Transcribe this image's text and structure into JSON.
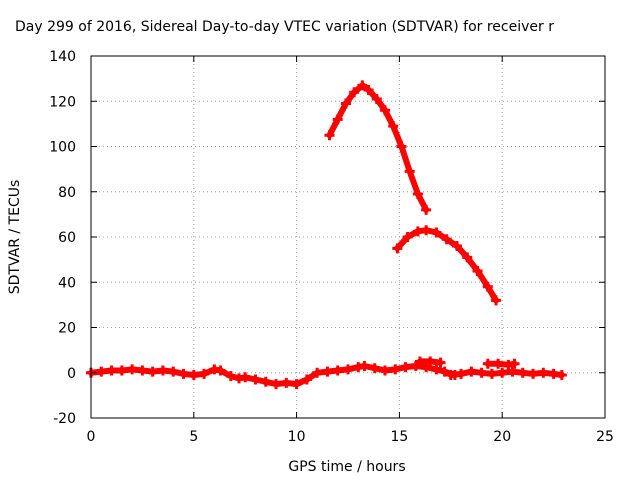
{
  "chart_data": {
    "type": "line",
    "title": "Day 299 of 2016, Sidereal Day-to-day VTEC variation (SDTVAR) for receiver r",
    "xlabel": "GPS time / hours",
    "ylabel": "SDTVAR / TECUs",
    "xlim": [
      0,
      25
    ],
    "ylim": [
      -20,
      140
    ],
    "xticks": [
      "0",
      "5",
      "10",
      "15",
      "20",
      "25"
    ],
    "yticks": [
      "-20",
      "0",
      "20",
      "40",
      "60",
      "80",
      "100",
      "120",
      "140"
    ],
    "grid": true,
    "color": "#ff0000",
    "series": [
      {
        "x": [
          0,
          0.5,
          1,
          1.5,
          2,
          2.5,
          3,
          3.5,
          4,
          4.5,
          5,
          5.5,
          6,
          6.3,
          6.8,
          7.2,
          7.5,
          8,
          8.5,
          9,
          9.5,
          10,
          10.5,
          11,
          11.5,
          12,
          12.5,
          13,
          13.3,
          13.8,
          14.3,
          14.8,
          15.3,
          15.8,
          16.3,
          16.8,
          17.2,
          17.7
        ],
        "y": [
          0,
          0.5,
          1,
          1,
          1.5,
          1,
          0.5,
          1,
          0.5,
          -0.5,
          -1,
          -0.5,
          1.5,
          1,
          -1.5,
          -2.5,
          -2,
          -3,
          -4,
          -5,
          -4.5,
          -5,
          -3,
          0,
          0.5,
          1,
          1.5,
          2.5,
          3,
          2,
          1,
          1.5,
          2.5,
          3,
          2.5,
          1.5,
          0.5,
          -1
        ]
      },
      {
        "x": [
          17.5,
          18,
          18.5,
          19,
          19.5,
          20,
          20.5,
          21,
          21.5,
          22,
          22.5,
          22.9
        ],
        "y": [
          -1,
          -0.5,
          0.5,
          0,
          -0.5,
          0,
          0.5,
          0,
          -0.5,
          0,
          -0.5,
          -1
        ]
      },
      {
        "x": [
          16,
          16.5,
          17
        ],
        "y": [
          5,
          5,
          4.5
        ]
      },
      {
        "x": [
          19.3,
          19.8,
          20.3,
          20.6
        ],
        "y": [
          4,
          4,
          3.5,
          4
        ]
      },
      {
        "x": [
          11.6,
          12,
          12.4,
          12.8,
          13.2,
          13.5,
          13.9,
          14.3,
          14.7,
          15.1,
          15.5,
          15.9,
          16.3
        ],
        "y": [
          105,
          112,
          119,
          124,
          127,
          125,
          121,
          116,
          109,
          100,
          89,
          79,
          72
        ]
      },
      {
        "x": [
          14.9,
          15.4,
          15.9,
          16.3,
          16.8,
          17.3,
          17.8,
          18.3,
          18.8,
          19.3,
          19.7
        ],
        "y": [
          55,
          60,
          62.5,
          63,
          62,
          59,
          56,
          51,
          45,
          38,
          32
        ]
      }
    ]
  }
}
